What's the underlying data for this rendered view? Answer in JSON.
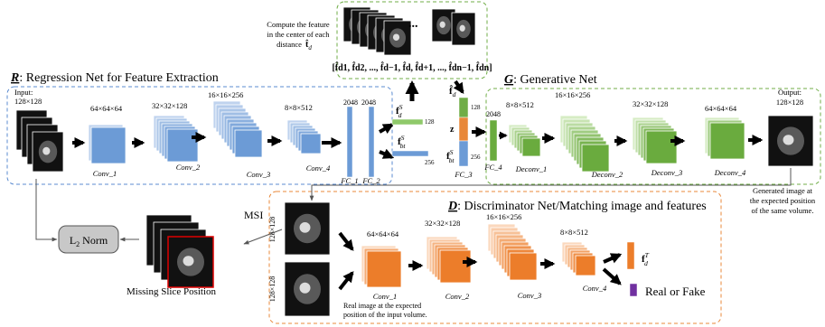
{
  "regression": {
    "letter": "R",
    "title": ": Regression Net for Feature Extraction",
    "input_label": "Input:",
    "input_size": "128×128",
    "conv_sizes": [
      "64×64×64",
      "32×32×128",
      "16×16×256",
      "8×8×512"
    ],
    "fc_sizes": [
      "2048",
      "2048"
    ],
    "layers": [
      "Conv_1",
      "Conv_2",
      "Conv_3",
      "Conv_4",
      "FC_1",
      "FC_2"
    ]
  },
  "features": {
    "fd": {
      "main": "f",
      "sup": "S",
      "sub": "d"
    },
    "fd_dim": "128",
    "fbt": {
      "main": "f",
      "sup": "S",
      "sub": "bt"
    },
    "fbt_dim": "256"
  },
  "top": {
    "note": [
      "Compute the feature",
      "in the center of each",
      "distance"
    ],
    "note_var": {
      "main": "t̂",
      "sub": "d"
    },
    "ellipsis": "...",
    "feature_list": "[f̂d1, f̂d2, ..., f̂d−1, f̂d, f̂d+1, ..., f̂dn−1, f̂dn]"
  },
  "fc3": {
    "fd": {
      "main": "f̂",
      "sub": "d"
    },
    "fd_dim": "128",
    "z": "z",
    "fbt": {
      "main": "f",
      "sup": "S",
      "sub": "bt"
    },
    "fbt_dim": "256",
    "label": "FC_3"
  },
  "generative": {
    "letter": "G",
    "title": ": Generative Net",
    "fc4_size": "2048",
    "fc4_label": "FC_4",
    "deconv_sizes": [
      "8×8×512",
      "16×16×256",
      "32×32×128",
      "64×64×64"
    ],
    "layers": [
      "Deconv_1",
      "Deconv_2",
      "Deconv_3",
      "Deconv_4"
    ],
    "output_label": "Output:",
    "output_size": "128×128",
    "caption": [
      "Generated image at",
      "the expected position",
      "of the same volume."
    ]
  },
  "discriminator": {
    "letter": "D",
    "title": ": Discriminator Net/Matching image and features",
    "input_sizes": [
      "128×128",
      "128×128"
    ],
    "conv_sizes": [
      "64×64×64",
      "32×32×128",
      "16×16×256",
      "8×8×512"
    ],
    "layers": [
      "Conv_1",
      "Conv_2",
      "Conv_3",
      "Conv_4"
    ],
    "fdt": {
      "main": "f",
      "sup": "T",
      "sub": "d"
    },
    "output": "Real or Fake",
    "caption": [
      "Real image at the expected",
      "position of the input volume."
    ]
  },
  "msi": {
    "label": "MSI",
    "l2norm": {
      "main": "L",
      "sub": "2",
      "rest": " Norm"
    },
    "missing": "Missing Slice Position"
  }
}
